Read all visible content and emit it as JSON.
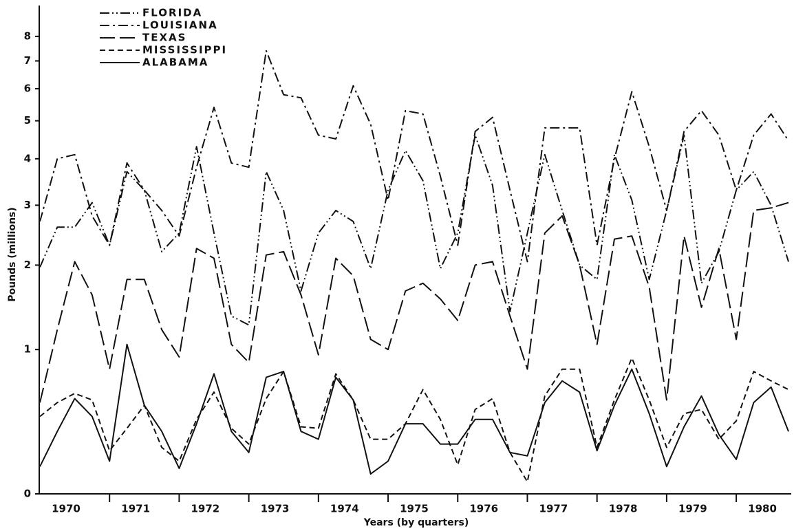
{
  "chart_data": {
    "type": "line",
    "xlabel": "Years (by quarters)",
    "ylabel": "Pounds (millions)",
    "categories": [
      null,
      "1970",
      null,
      null,
      null,
      "1971",
      null,
      null,
      null,
      "1972",
      null,
      null,
      null,
      "1973",
      null,
      null,
      null,
      "1974",
      null,
      null,
      null,
      "1975",
      null,
      null,
      null,
      "1976",
      null,
      null,
      null,
      "1977",
      null,
      null,
      null,
      "1978",
      null,
      null,
      null,
      "1979",
      null,
      null,
      null,
      "1980",
      null,
      null
    ],
    "yscale": "log1p",
    "ylim": [
      0,
      9
    ],
    "yticks": [
      0,
      1,
      2,
      3,
      4,
      5,
      6,
      7,
      8
    ],
    "series": [
      {
        "name": "FLORIDA",
        "color": "#111111",
        "dash": "14 4 2 4 2 4",
        "values": [
          1.97,
          2.6,
          2.6,
          3.05,
          2.3,
          3.7,
          3.3,
          2.2,
          2.5,
          4.3,
          2.5,
          1.35,
          1.25,
          3.7,
          2.9,
          1.65,
          2.5,
          2.9,
          2.7,
          1.95,
          3.3,
          4.2,
          3.5,
          1.95,
          2.5,
          4.6,
          3.4,
          1.4,
          2.5,
          4.1,
          2.9,
          2.0,
          1.8,
          4.1,
          3.1,
          1.8,
          2.9,
          4.6,
          1.75,
          2.2,
          3.3,
          3.7,
          3.0,
          2.05
        ]
      },
      {
        "name": "LOUISIANA",
        "color": "#111111",
        "dash": "14 5 3 5",
        "values": [
          2.7,
          4.0,
          4.1,
          2.8,
          2.3,
          3.9,
          3.3,
          2.9,
          2.45,
          3.8,
          5.4,
          3.9,
          3.8,
          7.4,
          5.8,
          5.7,
          4.6,
          4.5,
          6.1,
          4.9,
          3.1,
          5.3,
          5.2,
          3.6,
          2.3,
          4.7,
          5.1,
          3.3,
          2.05,
          4.8,
          4.8,
          4.8,
          2.3,
          4.0,
          5.9,
          4.3,
          2.9,
          4.7,
          5.3,
          4.6,
          3.3,
          4.6,
          5.2,
          4.45
        ]
      },
      {
        "name": "TEXAS",
        "color": "#111111",
        "dash": "22 7",
        "values": [
          0.55,
          1.2,
          2.05,
          1.6,
          0.82,
          1.8,
          1.8,
          1.2,
          0.93,
          2.25,
          2.1,
          1.05,
          0.88,
          2.15,
          2.2,
          1.6,
          0.95,
          2.1,
          1.85,
          1.1,
          1.0,
          1.65,
          1.75,
          1.55,
          1.3,
          2.0,
          2.05,
          1.35,
          0.82,
          2.5,
          2.8,
          2.0,
          1.05,
          2.4,
          2.45,
          1.7,
          0.57,
          2.45,
          1.45,
          2.25,
          1.1,
          2.9,
          2.95,
          3.05
        ]
      },
      {
        "name": "MISSISSIPPI",
        "color": "#111111",
        "dash": "8 5",
        "values": [
          0.45,
          0.55,
          0.62,
          0.57,
          0.23,
          0.37,
          0.53,
          0.25,
          0.17,
          0.43,
          0.63,
          0.37,
          0.27,
          0.58,
          0.8,
          0.38,
          0.37,
          0.78,
          0.57,
          0.3,
          0.3,
          0.4,
          0.65,
          0.43,
          0.15,
          0.5,
          0.58,
          0.22,
          0.06,
          0.6,
          0.82,
          0.82,
          0.25,
          0.57,
          0.92,
          0.57,
          0.25,
          0.47,
          0.5,
          0.3,
          0.42,
          0.8,
          0.72,
          0.65
        ]
      },
      {
        "name": "ALABAMA",
        "color": "#111111",
        "dash": "none",
        "values": [
          0.14,
          0.35,
          0.58,
          0.45,
          0.17,
          1.05,
          0.53,
          0.35,
          0.13,
          0.4,
          0.78,
          0.35,
          0.22,
          0.75,
          0.8,
          0.35,
          0.3,
          0.75,
          0.57,
          0.1,
          0.17,
          0.4,
          0.4,
          0.27,
          0.27,
          0.43,
          0.43,
          0.22,
          0.2,
          0.55,
          0.72,
          0.63,
          0.23,
          0.53,
          0.82,
          0.47,
          0.14,
          0.38,
          0.6,
          0.33,
          0.18,
          0.55,
          0.67,
          0.35
        ]
      }
    ]
  }
}
